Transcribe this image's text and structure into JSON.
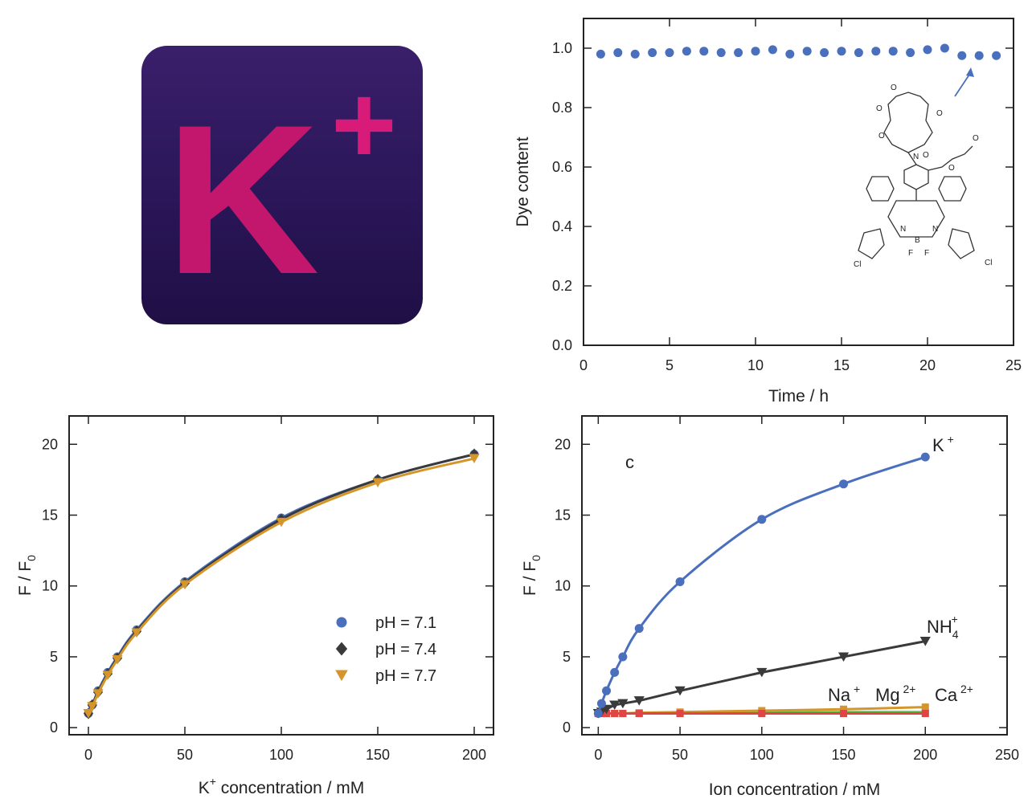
{
  "logo": {
    "letter": "K",
    "superscript": "+",
    "bg_color": "#2a1658",
    "letter_color": "#c2176d"
  },
  "chart_data": [
    {
      "type": "scatter",
      "xlabel": "Time / h",
      "ylabel": "Dye content",
      "xlim": [
        0,
        25
      ],
      "ylim": [
        0,
        1.1
      ],
      "xticks": [
        0,
        5,
        10,
        15,
        20,
        25
      ],
      "yticks": [
        0.0,
        0.2,
        0.4,
        0.6,
        0.8,
        1.0
      ],
      "ytick_labels": [
        "0.0",
        "0.2",
        "0.4",
        "0.6",
        "0.8",
        "1.0"
      ],
      "color": "#4a6fbd",
      "series": [
        {
          "x": [
            1,
            2,
            3,
            4,
            5,
            6,
            7,
            8,
            9,
            10,
            11,
            12,
            13,
            14,
            15,
            16,
            17,
            18,
            19,
            20,
            21,
            22,
            23,
            24
          ],
          "y": [
            0.98,
            0.985,
            0.98,
            0.985,
            0.985,
            0.99,
            0.99,
            0.985,
            0.985,
            0.99,
            0.995,
            0.98,
            0.99,
            0.985,
            0.99,
            0.985,
            0.99,
            0.99,
            0.985,
            0.995,
            1.0,
            0.975,
            0.975,
            0.975
          ]
        }
      ],
      "inset_molecule_labels": [
        "O",
        "O",
        "O",
        "O",
        "O",
        "N",
        "O",
        "O",
        "N",
        "N",
        "B",
        "F",
        "F",
        "Cl",
        "Cl"
      ]
    },
    {
      "type": "line",
      "xlabel": "K",
      "xlabel_sup": "+",
      "xlabel_rest": " concentration / mM",
      "ylabel": "F / F",
      "ylabel_sub": "0",
      "xlim": [
        -10,
        210
      ],
      "ylim": [
        -0.5,
        22
      ],
      "xticks": [
        0,
        50,
        100,
        150,
        200
      ],
      "yticks": [
        0,
        5,
        10,
        15,
        20
      ],
      "x": [
        0,
        2,
        5,
        10,
        15,
        25,
        50,
        100,
        150,
        200
      ],
      "series": [
        {
          "name": "pH = 7.1",
          "marker": "circle",
          "color": "#4a6fbd",
          "values": [
            1.0,
            1.6,
            2.6,
            3.9,
            5.0,
            6.9,
            10.3,
            14.8,
            17.5,
            19.3
          ]
        },
        {
          "name": "pH = 7.4",
          "marker": "diamond",
          "color": "#3a3a3a",
          "values": [
            1.0,
            1.6,
            2.5,
            3.8,
            4.9,
            6.8,
            10.2,
            14.7,
            17.5,
            19.3
          ]
        },
        {
          "name": "pH = 7.7",
          "marker": "triangle-down",
          "color": "#d4962a",
          "values": [
            1.0,
            1.5,
            2.4,
            3.7,
            4.8,
            6.7,
            10.1,
            14.5,
            17.3,
            19.0
          ]
        }
      ],
      "legend_position": "bottom-right"
    },
    {
      "type": "line",
      "panel_label": "c",
      "xlabel": "Ion concentration / mM",
      "ylabel": "F / F",
      "ylabel_sub": "0",
      "xlim": [
        -10,
        250
      ],
      "ylim": [
        -0.5,
        22
      ],
      "xticks": [
        0,
        50,
        100,
        150,
        200,
        250
      ],
      "yticks": [
        0,
        5,
        10,
        15,
        20
      ],
      "x": [
        0,
        2,
        5,
        10,
        15,
        25,
        50,
        100,
        150,
        200
      ],
      "series": [
        {
          "name": "K",
          "sup": "+",
          "marker": "circle",
          "color": "#4a6fbd",
          "values": [
            1.0,
            1.7,
            2.6,
            3.9,
            5.0,
            7.0,
            10.3,
            14.7,
            17.2,
            19.1
          ]
        },
        {
          "name": "NH",
          "sub": "4",
          "sup": "+",
          "marker": "triangle-down",
          "color": "#3a3a3a",
          "values": [
            1.0,
            1.1,
            1.3,
            1.6,
            1.7,
            1.9,
            2.6,
            3.9,
            5.0,
            6.1
          ]
        },
        {
          "name": "Na",
          "sup": "+",
          "marker": "square",
          "color": "#d4962a",
          "values": [
            1.0,
            1.0,
            1.0,
            1.0,
            1.0,
            1.05,
            1.1,
            1.2,
            1.3,
            1.45
          ]
        },
        {
          "name": "Mg",
          "sup": "2+",
          "marker": "square",
          "color": "#5fbf4a",
          "values": [
            1.0,
            1.0,
            1.0,
            1.0,
            1.0,
            1.0,
            1.0,
            1.05,
            1.1,
            1.1
          ]
        },
        {
          "name": "Ca",
          "sup": "2+",
          "marker": "square",
          "color": "#e04545",
          "values": [
            1.0,
            1.0,
            1.0,
            1.0,
            1.0,
            1.0,
            1.0,
            1.0,
            1.0,
            1.0
          ]
        }
      ]
    }
  ]
}
